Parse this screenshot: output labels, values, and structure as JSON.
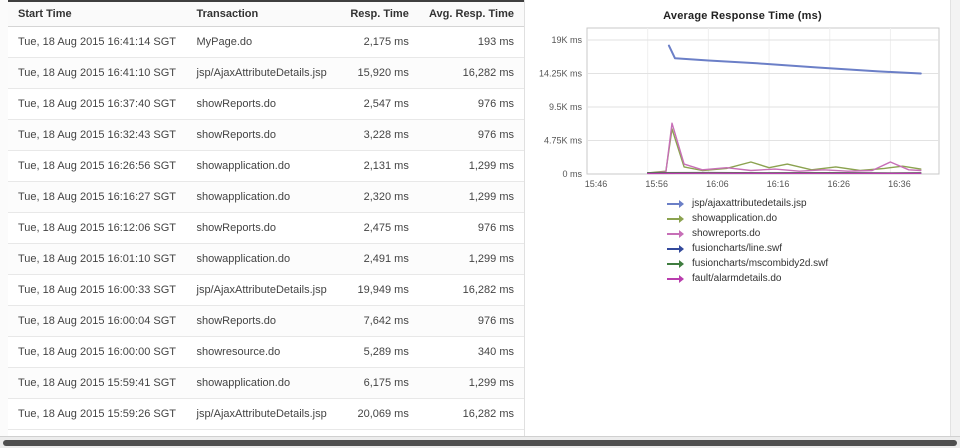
{
  "table": {
    "columns": [
      "Start Time",
      "Transaction",
      "Resp. Time",
      "Avg. Resp. Time"
    ],
    "rows": [
      {
        "start": "Tue, 18 Aug 2015 16:41:14 SGT",
        "txn": "MyPage.do",
        "resp": "2,175 ms",
        "avg": "193 ms"
      },
      {
        "start": "Tue, 18 Aug 2015 16:41:10 SGT",
        "txn": "jsp/AjaxAttributeDetails.jsp",
        "resp": "15,920 ms",
        "avg": "16,282 ms"
      },
      {
        "start": "Tue, 18 Aug 2015 16:37:40 SGT",
        "txn": "showReports.do",
        "resp": "2,547 ms",
        "avg": "976 ms"
      },
      {
        "start": "Tue, 18 Aug 2015 16:32:43 SGT",
        "txn": "showReports.do",
        "resp": "3,228 ms",
        "avg": "976 ms"
      },
      {
        "start": "Tue, 18 Aug 2015 16:26:56 SGT",
        "txn": "showapplication.do",
        "resp": "2,131 ms",
        "avg": "1,299 ms"
      },
      {
        "start": "Tue, 18 Aug 2015 16:16:27 SGT",
        "txn": "showapplication.do",
        "resp": "2,320 ms",
        "avg": "1,299 ms"
      },
      {
        "start": "Tue, 18 Aug 2015 16:12:06 SGT",
        "txn": "showReports.do",
        "resp": "2,475 ms",
        "avg": "976 ms"
      },
      {
        "start": "Tue, 18 Aug 2015 16:01:10 SGT",
        "txn": "showapplication.do",
        "resp": "2,491 ms",
        "avg": "1,299 ms"
      },
      {
        "start": "Tue, 18 Aug 2015 16:00:33 SGT",
        "txn": "jsp/AjaxAttributeDetails.jsp",
        "resp": "19,949 ms",
        "avg": "16,282 ms"
      },
      {
        "start": "Tue, 18 Aug 2015 16:00:04 SGT",
        "txn": "showReports.do",
        "resp": "7,642 ms",
        "avg": "976 ms"
      },
      {
        "start": "Tue, 18 Aug 2015 16:00:00 SGT",
        "txn": "showresource.do",
        "resp": "5,289 ms",
        "avg": "340 ms"
      },
      {
        "start": "Tue, 18 Aug 2015 15:59:41 SGT",
        "txn": "showapplication.do",
        "resp": "6,175 ms",
        "avg": "1,299 ms"
      },
      {
        "start": "Tue, 18 Aug 2015 15:59:26 SGT",
        "txn": "jsp/AjaxAttributeDetails.jsp",
        "resp": "20,069 ms",
        "avg": "16,282 ms"
      }
    ]
  },
  "chart_data": {
    "type": "line",
    "title": "Average Response Time (ms)",
    "xlabel": "",
    "ylabel": "",
    "grid": true,
    "legend_position": "bottom",
    "ylim": [
      0,
      19000
    ],
    "yticks": [
      {
        "v": 0,
        "label": "0 ms"
      },
      {
        "v": 4750,
        "label": "4.75K ms"
      },
      {
        "v": 9500,
        "label": "9.5K ms"
      },
      {
        "v": 14250,
        "label": "14.25K ms"
      },
      {
        "v": 19000,
        "label": "19K ms"
      }
    ],
    "xlim": [
      0,
      58
    ],
    "xticks": [
      {
        "x": 0,
        "label": "15:46"
      },
      {
        "x": 10,
        "label": "15:56"
      },
      {
        "x": 20,
        "label": "16:06"
      },
      {
        "x": 30,
        "label": "16:16"
      },
      {
        "x": 40,
        "label": "16:26"
      },
      {
        "x": 50,
        "label": "16:36"
      }
    ],
    "series": [
      {
        "name": "jsp/ajaxattributedetails.jsp",
        "color": "#6b7fc7",
        "points": [
          [
            13.5,
            18200
          ],
          [
            14.5,
            16400
          ],
          [
            20,
            16100
          ],
          [
            28,
            15700
          ],
          [
            38,
            15100
          ],
          [
            48,
            14550
          ],
          [
            55,
            14250
          ]
        ]
      },
      {
        "name": "showapplication.do",
        "color": "#8ba24f",
        "points": [
          [
            10,
            150
          ],
          [
            13,
            400
          ],
          [
            14,
            6400
          ],
          [
            16,
            1000
          ],
          [
            19,
            500
          ],
          [
            23,
            800
          ],
          [
            27,
            1700
          ],
          [
            30,
            900
          ],
          [
            33,
            1400
          ],
          [
            37,
            600
          ],
          [
            41,
            1000
          ],
          [
            45,
            500
          ],
          [
            49,
            800
          ],
          [
            52,
            1100
          ],
          [
            55,
            700
          ]
        ]
      },
      {
        "name": "showreports.do",
        "color": "#c76fb7",
        "points": [
          [
            10,
            100
          ],
          [
            13,
            300
          ],
          [
            14,
            7200
          ],
          [
            16,
            1400
          ],
          [
            19,
            600
          ],
          [
            23,
            900
          ],
          [
            27,
            500
          ],
          [
            31,
            700
          ],
          [
            35,
            400
          ],
          [
            39,
            600
          ],
          [
            43,
            400
          ],
          [
            47,
            500
          ],
          [
            50,
            1700
          ],
          [
            53,
            600
          ],
          [
            55,
            500
          ]
        ]
      },
      {
        "name": "fusioncharts/line.swf",
        "color": "#33499b",
        "points": [
          [
            10,
            120
          ],
          [
            20,
            150
          ],
          [
            30,
            130
          ],
          [
            40,
            140
          ],
          [
            50,
            120
          ],
          [
            55,
            130
          ]
        ]
      },
      {
        "name": "fusioncharts/mscombidy2d.swf",
        "color": "#3f7d3f",
        "points": [
          [
            10,
            180
          ],
          [
            20,
            200
          ],
          [
            30,
            170
          ],
          [
            40,
            190
          ],
          [
            50,
            160
          ],
          [
            55,
            170
          ]
        ]
      },
      {
        "name": "fault/alarmdetails.do",
        "color": "#b93dad",
        "points": [
          [
            10,
            90
          ],
          [
            20,
            110
          ],
          [
            30,
            100
          ],
          [
            40,
            95
          ],
          [
            50,
            105
          ],
          [
            55,
            100
          ]
        ]
      }
    ]
  }
}
